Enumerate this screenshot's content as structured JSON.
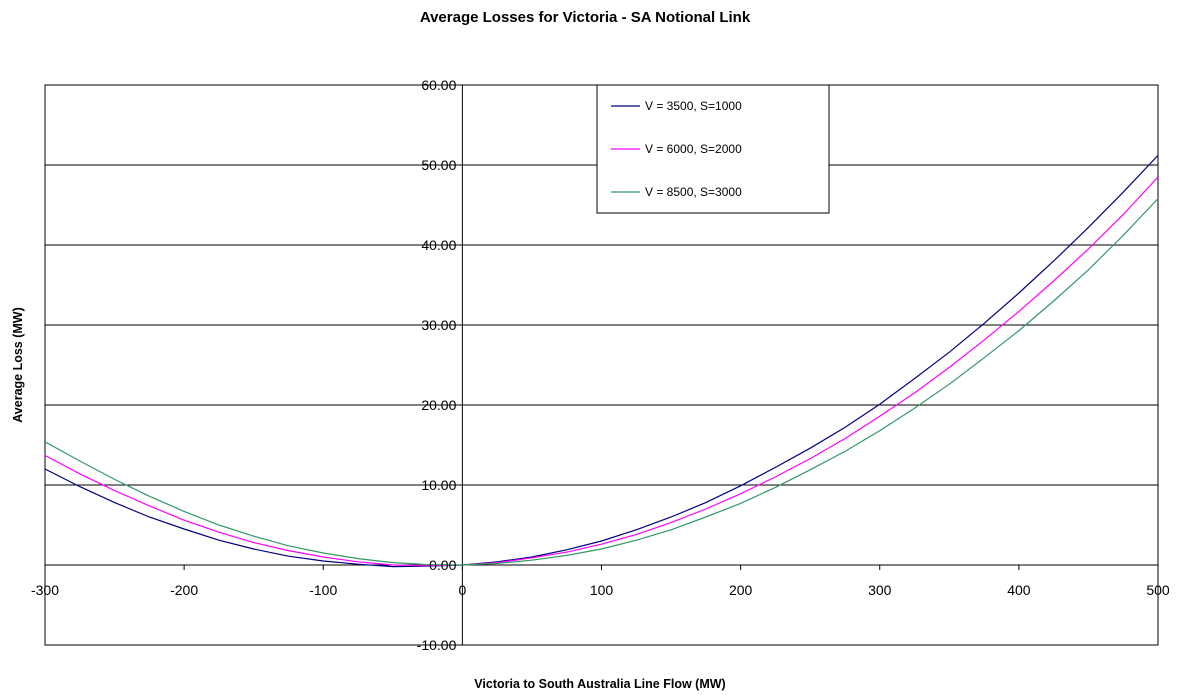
{
  "chart_data": {
    "type": "line",
    "title": "Average Losses for Victoria - SA Notional Link",
    "xlabel": "Victoria to South Australia Line Flow (MW)",
    "ylabel": "Average Loss (MW)",
    "xlim": [
      -300,
      500
    ],
    "ylim": [
      -10,
      60
    ],
    "x_ticks": [
      "-300",
      "-200",
      "-100",
      "0",
      "100",
      "200",
      "300",
      "400",
      "500"
    ],
    "y_ticks": [
      "-10.00",
      "0.00",
      "10.00",
      "20.00",
      "30.00",
      "40.00",
      "50.00",
      "60.00"
    ],
    "grid": "horizontal",
    "legend_position": "top-center",
    "x": [
      -300,
      -275,
      -250,
      -225,
      -200,
      -175,
      -150,
      -125,
      -100,
      -75,
      -50,
      -25,
      0,
      25,
      50,
      75,
      100,
      125,
      150,
      175,
      200,
      225,
      250,
      275,
      300,
      325,
      350,
      375,
      400,
      425,
      450,
      475,
      500
    ],
    "series": [
      {
        "name": "V = 3500, S=1000",
        "color": "#000080",
        "values": [
          12.0,
          9.8,
          7.8,
          6.0,
          4.5,
          3.1,
          2.0,
          1.1,
          0.5,
          0.1,
          -0.2,
          -0.15,
          0.0,
          0.4,
          1.0,
          1.9,
          3.0,
          4.4,
          6.0,
          7.8,
          9.9,
          12.2,
          14.6,
          17.2,
          20.1,
          23.3,
          26.6,
          30.2,
          34.0,
          38.0,
          42.2,
          46.6,
          51.2
        ]
      },
      {
        "name": "V = 6000, S=2000",
        "color": "#FF00FF",
        "values": [
          13.7,
          11.4,
          9.3,
          7.4,
          5.6,
          4.1,
          2.8,
          1.8,
          1.0,
          0.4,
          0.0,
          -0.1,
          0.0,
          0.3,
          0.9,
          1.6,
          2.6,
          3.8,
          5.3,
          7.0,
          8.9,
          11.0,
          13.3,
          15.8,
          18.6,
          21.5,
          24.7,
          28.1,
          31.7,
          35.5,
          39.5,
          43.8,
          48.5
        ]
      },
      {
        "name": "V = 8500, S=3000",
        "color": "#339966",
        "values": [
          15.4,
          13.0,
          10.7,
          8.6,
          6.7,
          5.0,
          3.6,
          2.4,
          1.5,
          0.8,
          0.3,
          0.05,
          0.0,
          0.2,
          0.6,
          1.2,
          2.0,
          3.1,
          4.4,
          6.0,
          7.7,
          9.7,
          11.9,
          14.2,
          16.8,
          19.6,
          22.6,
          25.9,
          29.3,
          33.0,
          36.9,
          41.2,
          45.8
        ]
      }
    ]
  }
}
